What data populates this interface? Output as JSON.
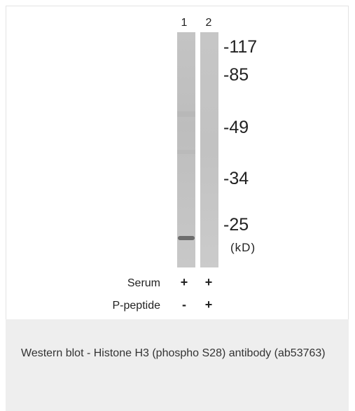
{
  "figure": {
    "lanes": [
      "1",
      "2"
    ],
    "markers": [
      "-117",
      "-85",
      "-49",
      "-34",
      "-25",
      "(kD)"
    ],
    "conditions": [
      {
        "label": "Serum",
        "lanes": [
          "+",
          "+"
        ]
      },
      {
        "label": "P-peptide",
        "lanes": [
          "-",
          "+"
        ]
      }
    ]
  },
  "caption": "Western blot - Histone H3 (phospho S28) antibody (ab53763)"
}
